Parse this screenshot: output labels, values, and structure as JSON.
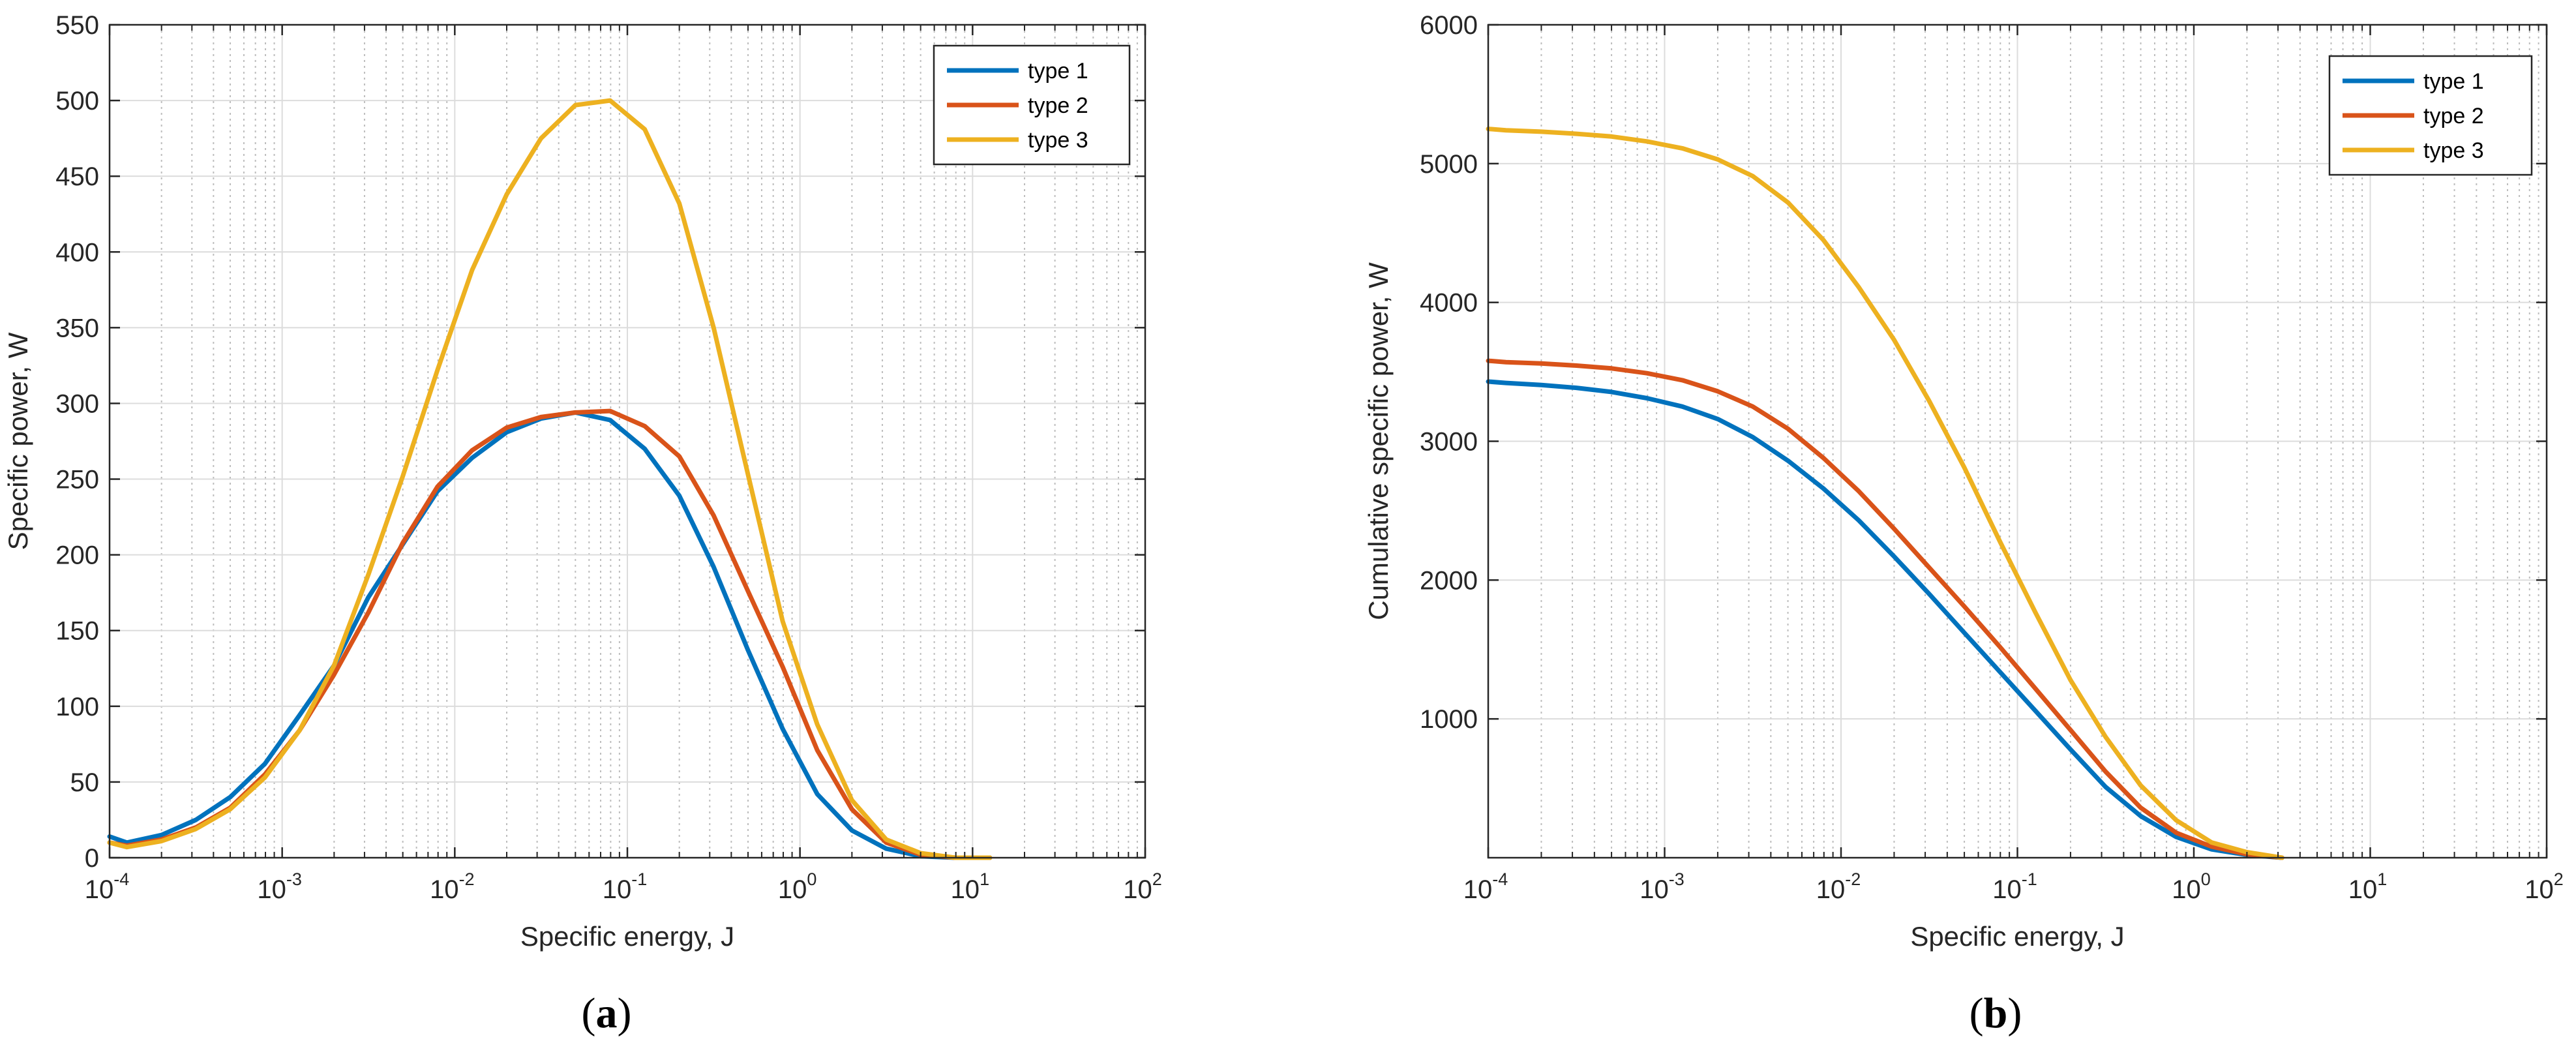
{
  "colors": {
    "type1": "#0072BD",
    "type2": "#D95319",
    "type3": "#EDB120",
    "axis": "#262626",
    "grid_major": "#dcdcdc",
    "grid_minor": "#bdbdbd"
  },
  "chart_data": [
    {
      "id": "a",
      "type": "line",
      "caption": {
        "open": "(",
        "letter": "a",
        "close": ")"
      },
      "xscale": "log",
      "xlim": [
        0.0001,
        100
      ],
      "ylim": [
        0,
        550
      ],
      "xlabel": "Specific energy, J",
      "ylabel": "Specific power, W",
      "grid": true,
      "legend_position": "top-right",
      "xticks": [
        {
          "value": 0.0001,
          "base": "10",
          "exp": "-4"
        },
        {
          "value": 0.001,
          "base": "10",
          "exp": "-3"
        },
        {
          "value": 0.01,
          "base": "10",
          "exp": "-2"
        },
        {
          "value": 0.1,
          "base": "10",
          "exp": "-1"
        },
        {
          "value": 1,
          "base": "10",
          "exp": "0"
        },
        {
          "value": 10,
          "base": "10",
          "exp": "1"
        },
        {
          "value": 100,
          "base": "10",
          "exp": "2"
        }
      ],
      "yticks": [
        0,
        50,
        100,
        150,
        200,
        250,
        300,
        350,
        400,
        450,
        500,
        550
      ],
      "x": [
        0.0001,
        0.000126,
        0.0002,
        0.000316,
        0.0005,
        0.000794,
        0.00126,
        0.002,
        0.00316,
        0.005,
        0.00794,
        0.0126,
        0.02,
        0.0316,
        0.05,
        0.0794,
        0.126,
        0.2,
        0.316,
        0.5,
        0.794,
        1.26,
        2,
        3.16,
        5,
        7.94,
        12.6
      ],
      "series": [
        {
          "name": "type 1",
          "values": [
            14,
            10,
            15,
            25,
            40,
            62,
            94,
            127,
            172,
            207,
            242,
            264,
            281,
            290,
            294,
            289,
            270,
            239,
            192,
            137,
            85,
            42,
            18,
            6,
            1,
            0,
            0
          ]
        },
        {
          "name": "type 2",
          "values": [
            10,
            8,
            12,
            20,
            33,
            55,
            84,
            121,
            162,
            208,
            245,
            269,
            284,
            291,
            294,
            295,
            285,
            265,
            226,
            176,
            126,
            71,
            32,
            10,
            2,
            0,
            0
          ]
        },
        {
          "name": "type 3",
          "values": [
            10,
            7,
            11,
            19,
            32,
            53,
            84,
            127,
            187,
            252,
            322,
            388,
            438,
            475,
            497,
            500,
            481,
            432,
            350,
            253,
            156,
            88,
            38,
            12,
            3,
            0,
            0
          ]
        }
      ]
    },
    {
      "id": "b",
      "type": "line",
      "caption": {
        "open": "(",
        "letter": "b",
        "close": ")"
      },
      "xscale": "log",
      "xlim": [
        0.0001,
        100
      ],
      "ylim": [
        0,
        6000
      ],
      "xlabel": "Specific energy, J",
      "ylabel": "Cumulative specific power, W",
      "grid": true,
      "legend_position": "top-right",
      "xticks": [
        {
          "value": 0.0001,
          "base": "10",
          "exp": "-4"
        },
        {
          "value": 0.001,
          "base": "10",
          "exp": "-3"
        },
        {
          "value": 0.01,
          "base": "10",
          "exp": "-2"
        },
        {
          "value": 0.1,
          "base": "10",
          "exp": "-1"
        },
        {
          "value": 1,
          "base": "10",
          "exp": "0"
        },
        {
          "value": 10,
          "base": "10",
          "exp": "1"
        },
        {
          "value": 100,
          "base": "10",
          "exp": "2"
        }
      ],
      "yticks": [
        1000,
        2000,
        3000,
        4000,
        5000,
        6000
      ],
      "x": [
        0.0001,
        0.000126,
        0.0002,
        0.000316,
        0.0005,
        0.000794,
        0.00126,
        0.002,
        0.00316,
        0.005,
        0.00794,
        0.0126,
        0.02,
        0.0316,
        0.05,
        0.0794,
        0.126,
        0.2,
        0.316,
        0.5,
        0.794,
        1.26,
        2,
        3.16
      ],
      "series": [
        {
          "name": "type 1",
          "values": [
            3430,
            3420,
            3405,
            3385,
            3355,
            3310,
            3250,
            3160,
            3030,
            2860,
            2660,
            2430,
            2170,
            1900,
            1620,
            1340,
            1060,
            780,
            510,
            300,
            150,
            60,
            20,
            0
          ]
        },
        {
          "name": "type 2",
          "values": [
            3580,
            3570,
            3560,
            3545,
            3525,
            3490,
            3440,
            3360,
            3250,
            3090,
            2880,
            2640,
            2370,
            2090,
            1810,
            1520,
            1220,
            920,
            620,
            360,
            180,
            80,
            25,
            0
          ]
        },
        {
          "name": "type 3",
          "values": [
            5250,
            5240,
            5230,
            5215,
            5195,
            5160,
            5110,
            5030,
            4910,
            4720,
            4450,
            4110,
            3730,
            3290,
            2810,
            2280,
            1770,
            1280,
            870,
            520,
            270,
            110,
            40,
            0
          ]
        }
      ]
    }
  ]
}
